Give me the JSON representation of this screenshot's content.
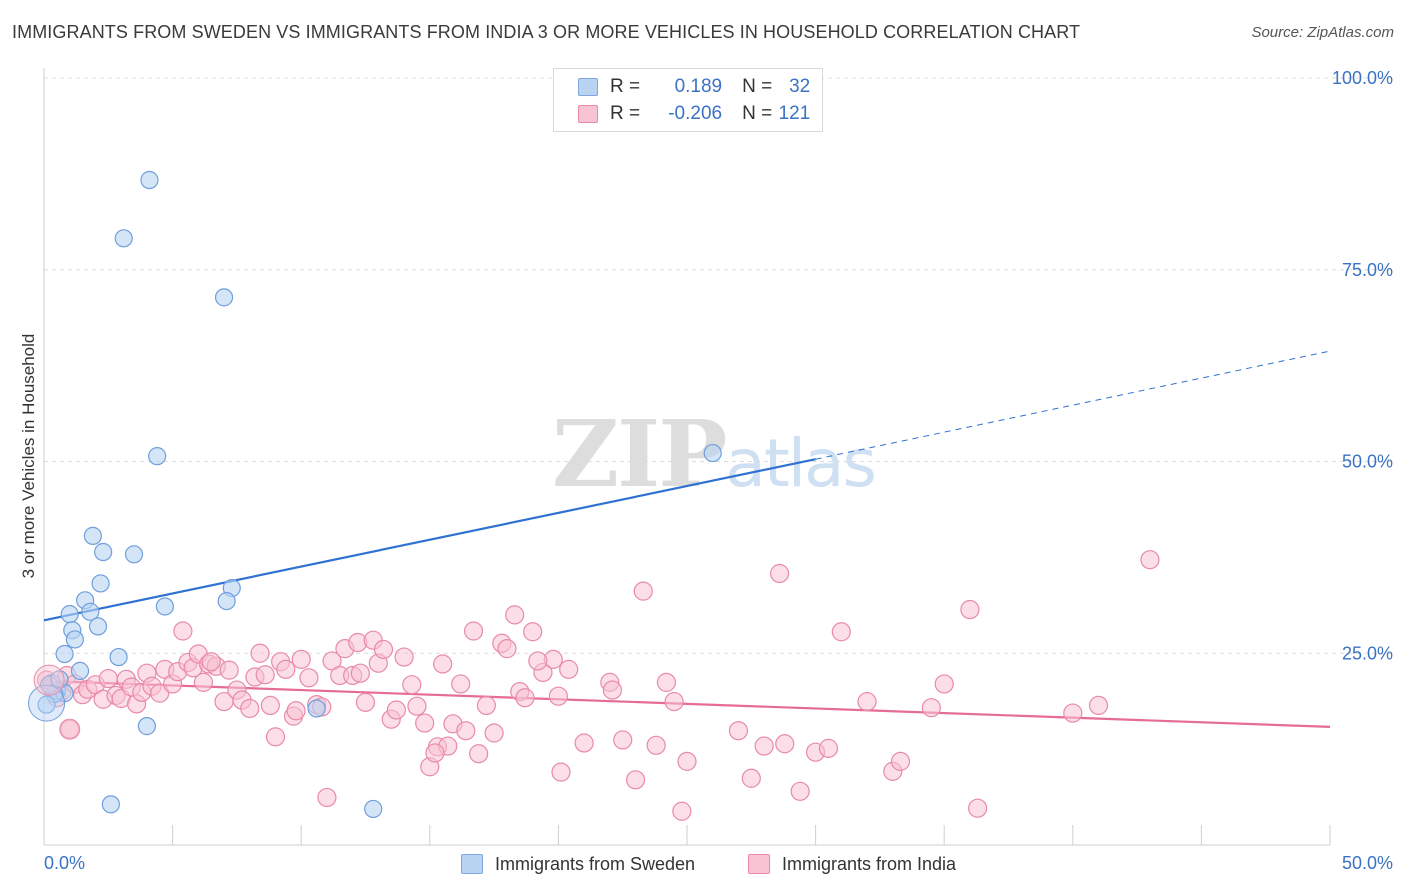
{
  "header": {
    "title": "IMMIGRANTS FROM SWEDEN VS IMMIGRANTS FROM INDIA 3 OR MORE VEHICLES IN HOUSEHOLD CORRELATION CHART",
    "source": "Source: ZipAtlas.com"
  },
  "watermark": {
    "zip": "ZIP",
    "atlas": "atlas"
  },
  "legend": {
    "rows": [
      {
        "r_label": "R =",
        "r_value": "0.189",
        "n_label": "N =",
        "n_value": "32"
      },
      {
        "r_label": "R =",
        "r_value": "-0.206",
        "n_label": "N =",
        "n_value": "121"
      }
    ]
  },
  "bottom_legend": {
    "sweden": "Immigrants from Sweden",
    "india": "Immigrants from India"
  },
  "colors": {
    "sweden_fill": "#b9d3f3",
    "sweden_stroke": "#6f9fdc",
    "sweden_line": "#2f72cf",
    "india_fill": "#f8c3d3",
    "india_stroke": "#e88aa8",
    "india_line": "#e56b98",
    "tick_label": "#3a72c4",
    "grid": "#dcdcdc"
  },
  "chart_data": {
    "type": "scatter",
    "ylabel": "3 or more Vehicles in Household",
    "xlim": [
      0,
      50
    ],
    "ylim": [
      0,
      100
    ],
    "x_tick_labels": [
      "0.0%",
      "50.0%"
    ],
    "y_ticks": [
      {
        "value": 25,
        "label": "25.0%"
      },
      {
        "value": 50,
        "label": "50.0%"
      },
      {
        "value": 75,
        "label": "75.0%"
      },
      {
        "value": 100,
        "label": "100.0%"
      }
    ],
    "grid": true,
    "series": [
      {
        "name": "Immigrants from Sweden",
        "points": [
          [
            4.1,
            86.7
          ],
          [
            3.1,
            79.1
          ],
          [
            7.0,
            71.4
          ],
          [
            4.4,
            50.7
          ],
          [
            26.0,
            51.1
          ],
          [
            1.9,
            40.3
          ],
          [
            2.3,
            38.2
          ],
          [
            3.5,
            37.9
          ],
          [
            2.2,
            34.1
          ],
          [
            7.3,
            33.5
          ],
          [
            1.6,
            31.9
          ],
          [
            7.1,
            31.8
          ],
          [
            4.7,
            31.1
          ],
          [
            1.0,
            30.1
          ],
          [
            1.8,
            30.4
          ],
          [
            1.1,
            28.0
          ],
          [
            1.2,
            26.8
          ],
          [
            2.1,
            28.5
          ],
          [
            0.8,
            24.9
          ],
          [
            2.9,
            24.5
          ],
          [
            1.4,
            22.7
          ],
          [
            0.3,
            21.1
          ],
          [
            0.5,
            20.1
          ],
          [
            0.8,
            19.8
          ],
          [
            0.4,
            19.7
          ],
          [
            0.2,
            20.9
          ],
          [
            0.6,
            21.6
          ],
          [
            0.1,
            18.3
          ],
          [
            10.6,
            17.8
          ],
          [
            4.0,
            15.5
          ],
          [
            2.6,
            5.3
          ],
          [
            12.8,
            4.7
          ]
        ],
        "trend": {
          "x0": 0,
          "y0": 29.3,
          "x1": 30,
          "y1": 50.3,
          "dashed_to_x": 50,
          "dashed_to_y": 64.4
        }
      },
      {
        "name": "Immigrants from India",
        "points": [
          [
            0.1,
            21.5
          ],
          [
            0.3,
            20.6
          ],
          [
            0.5,
            19.2
          ],
          [
            0.7,
            20.1
          ],
          [
            0.9,
            22.1
          ],
          [
            1.0,
            15.1
          ],
          [
            1.2,
            21.0
          ],
          [
            1.5,
            19.6
          ],
          [
            1.7,
            20.3
          ],
          [
            2.0,
            20.9
          ],
          [
            2.3,
            19.0
          ],
          [
            2.5,
            21.7
          ],
          [
            2.8,
            19.5
          ],
          [
            3.0,
            19.1
          ],
          [
            3.2,
            21.6
          ],
          [
            3.4,
            20.6
          ],
          [
            3.6,
            18.4
          ],
          [
            3.8,
            19.9
          ],
          [
            4.0,
            22.4
          ],
          [
            4.2,
            20.7
          ],
          [
            4.5,
            19.8
          ],
          [
            4.7,
            22.9
          ],
          [
            5.0,
            21.0
          ],
          [
            5.2,
            22.6
          ],
          [
            5.4,
            27.9
          ],
          [
            5.6,
            23.8
          ],
          [
            5.8,
            23.1
          ],
          [
            6.0,
            24.9
          ],
          [
            6.2,
            21.2
          ],
          [
            6.4,
            23.6
          ],
          [
            6.7,
            23.3
          ],
          [
            7.0,
            18.7
          ],
          [
            7.2,
            22.8
          ],
          [
            7.5,
            20.2
          ],
          [
            7.7,
            18.9
          ],
          [
            8.0,
            17.8
          ],
          [
            8.2,
            21.9
          ],
          [
            8.4,
            25.0
          ],
          [
            8.6,
            22.2
          ],
          [
            8.8,
            18.2
          ],
          [
            9.0,
            14.1
          ],
          [
            9.2,
            23.9
          ],
          [
            9.4,
            22.9
          ],
          [
            9.7,
            16.8
          ],
          [
            10.0,
            24.2
          ],
          [
            10.3,
            21.8
          ],
          [
            10.6,
            18.3
          ],
          [
            10.8,
            18.0
          ],
          [
            11.0,
            6.2
          ],
          [
            11.2,
            24.0
          ],
          [
            11.5,
            22.1
          ],
          [
            11.7,
            25.6
          ],
          [
            12.0,
            22.1
          ],
          [
            12.2,
            26.4
          ],
          [
            12.5,
            18.6
          ],
          [
            12.8,
            26.7
          ],
          [
            13.0,
            23.7
          ],
          [
            13.2,
            25.5
          ],
          [
            13.5,
            16.4
          ],
          [
            13.7,
            17.6
          ],
          [
            14.0,
            24.5
          ],
          [
            14.3,
            20.9
          ],
          [
            14.5,
            18.1
          ],
          [
            14.8,
            15.9
          ],
          [
            15.0,
            10.2
          ],
          [
            15.3,
            12.8
          ],
          [
            15.5,
            23.6
          ],
          [
            15.7,
            12.9
          ],
          [
            15.9,
            15.8
          ],
          [
            16.2,
            21.0
          ],
          [
            16.4,
            14.9
          ],
          [
            16.7,
            27.9
          ],
          [
            16.9,
            11.9
          ],
          [
            17.2,
            18.2
          ],
          [
            17.5,
            14.6
          ],
          [
            17.8,
            26.3
          ],
          [
            18.0,
            25.6
          ],
          [
            18.3,
            30.0
          ],
          [
            18.5,
            20.0
          ],
          [
            18.7,
            19.2
          ],
          [
            19.0,
            27.8
          ],
          [
            19.4,
            22.5
          ],
          [
            19.8,
            24.2
          ],
          [
            20.1,
            9.5
          ],
          [
            20.4,
            22.9
          ],
          [
            21.0,
            13.3
          ],
          [
            22.0,
            21.2
          ],
          [
            22.1,
            20.2
          ],
          [
            22.5,
            13.7
          ],
          [
            23.0,
            8.5
          ],
          [
            23.3,
            33.1
          ],
          [
            23.8,
            13.0
          ],
          [
            24.2,
            21.2
          ],
          [
            24.5,
            18.7
          ],
          [
            24.8,
            4.4
          ],
          [
            25.0,
            10.9
          ],
          [
            27.0,
            14.9
          ],
          [
            27.5,
            8.7
          ],
          [
            28.0,
            12.9
          ],
          [
            28.6,
            35.4
          ],
          [
            28.8,
            13.2
          ],
          [
            29.4,
            7.0
          ],
          [
            30.0,
            12.1
          ],
          [
            31.0,
            27.8
          ],
          [
            32.0,
            18.7
          ],
          [
            33.0,
            9.6
          ],
          [
            33.3,
            10.9
          ],
          [
            34.5,
            17.9
          ],
          [
            35.0,
            21.0
          ],
          [
            36.0,
            30.7
          ],
          [
            36.3,
            4.8
          ],
          [
            40.0,
            17.2
          ],
          [
            41.0,
            18.2
          ],
          [
            43.0,
            37.2
          ],
          [
            30.5,
            12.6
          ],
          [
            20.0,
            19.4
          ],
          [
            15.2,
            12.0
          ],
          [
            9.8,
            17.5
          ],
          [
            6.5,
            23.9
          ],
          [
            19.2,
            24.0
          ],
          [
            12.3,
            22.4
          ]
        ],
        "trend": {
          "x0": 0,
          "y0": 21.4,
          "x1": 50,
          "y1": 15.4
        }
      }
    ]
  }
}
